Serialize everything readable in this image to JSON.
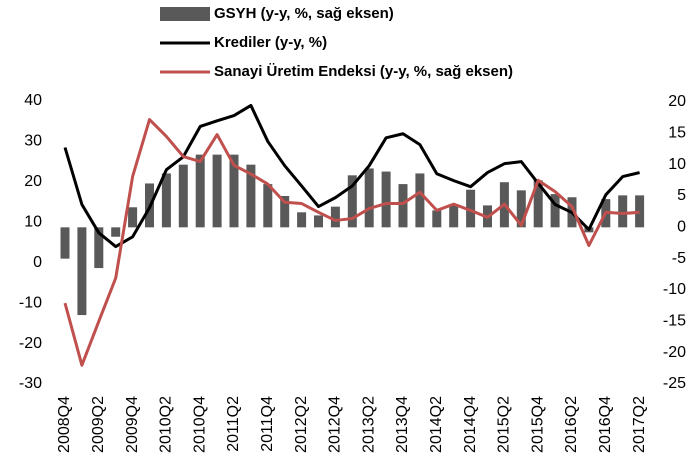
{
  "chart_data": {
    "type": "bar",
    "categories": [
      "2008Q4",
      null,
      "2009Q2",
      null,
      "2009Q4",
      null,
      "2010Q2",
      null,
      "2010Q4",
      null,
      "2011Q2",
      null,
      "2011Q4",
      null,
      "2012Q2",
      null,
      "2012Q4",
      null,
      "2013Q2",
      null,
      "2013Q4",
      null,
      "2014Q2",
      null,
      "2014Q4",
      null,
      "2015Q2",
      null,
      "2015Q4",
      null,
      "2016Q2",
      null,
      "2016Q4",
      null,
      "2017Q2"
    ],
    "series": [
      {
        "name": "GSYH (y-y, %, sağ eksen)",
        "type": "bar",
        "axis": "y2",
        "color": "#595959",
        "values": [
          -5,
          -14,
          -6.5,
          -1.5,
          3.2,
          7.0,
          8.6,
          10,
          11.6,
          11.6,
          11.6,
          10,
          6.9,
          5,
          2.4,
          1.9,
          3.3,
          8.3,
          9.4,
          8.9,
          6.9,
          8.6,
          2.7,
          3.7,
          6,
          3.5,
          7.2,
          5.9,
          7.5,
          5.3,
          4.8,
          -0.8,
          4.5,
          5.1,
          5.1
        ]
      },
      {
        "name": "Krediler (y-y, %)",
        "type": "line",
        "axis": "y",
        "color": "#000000",
        "values": [
          28.5,
          14.4,
          7.4,
          4,
          6.4,
          13.6,
          23,
          26.2,
          33.7,
          35.1,
          36.4,
          38.9,
          30,
          24,
          19,
          13.9,
          16.1,
          19,
          24,
          30.9,
          31.9,
          29.2,
          22,
          20.3,
          18.8,
          22.3,
          24.5,
          25,
          19.6,
          14.4,
          12.4,
          8.2,
          16.8,
          21.3,
          22.3
        ]
      },
      {
        "name": "Sanayi Üretim Endeksi (y-y, %, sağ eksen)",
        "type": "line",
        "axis": "y2",
        "color": "#c0504d",
        "values": [
          -12.1,
          -22,
          -15,
          -8.1,
          8.1,
          17.2,
          14.5,
          11.3,
          10.5,
          14.8,
          9.9,
          8.5,
          6.9,
          4,
          3.8,
          2.4,
          1.1,
          1.4,
          3,
          3.8,
          3.8,
          5.6,
          2.7,
          3.7,
          2.7,
          1.6,
          3.7,
          0.3,
          7.5,
          5.7,
          3.3,
          -2.9,
          2.4,
          2.2,
          2.4
        ]
      }
    ],
    "ylim": [
      -30,
      40
    ],
    "yticks": [
      -30,
      -20,
      -10,
      0,
      10,
      20,
      30,
      40
    ],
    "y2lim": [
      -25,
      20
    ],
    "y2ticks": [
      -25,
      -20,
      -15,
      -10,
      -5,
      0,
      5,
      10,
      15,
      20
    ],
    "legend": "top"
  }
}
